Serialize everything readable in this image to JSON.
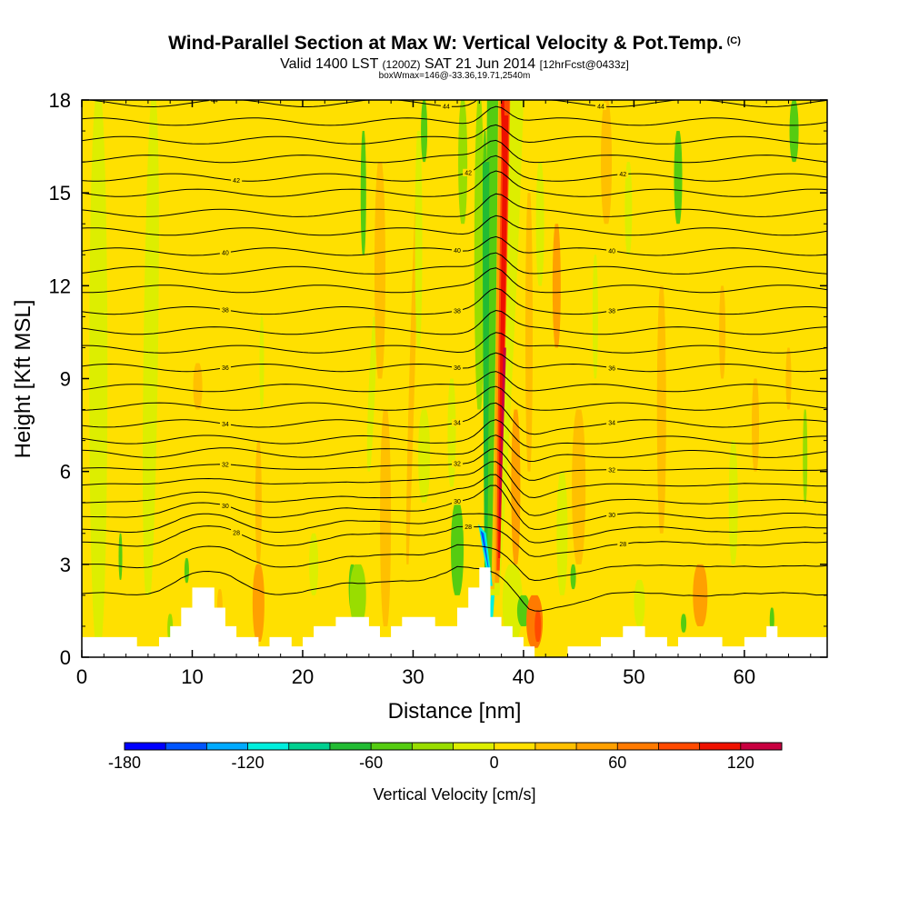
{
  "chart_data": {
    "type": "heatmap",
    "title": "Wind-Parallel Section at Max W: Vertical Velocity & Pot.Temp.",
    "title_mark": "(C)",
    "subtitle_valid": "Valid 1400 LST",
    "subtitle_utc": "(1200Z)",
    "subtitle_date": "SAT 21 Jun 2014",
    "subtitle_fcst": "[12hrFcst@0433z]",
    "subtitle2": "boxWmax=146@-33.36,19.71,2540m",
    "xlabel": "Distance [nm]",
    "ylabel": "Height [Kft MSL]",
    "xlim": [
      0,
      67.5
    ],
    "ylim": [
      0,
      18
    ],
    "xticks": [
      0,
      10,
      20,
      30,
      40,
      50,
      60
    ],
    "yticks": [
      0,
      3,
      6,
      9,
      12,
      15,
      18
    ],
    "colorbar": {
      "label": "Vertical Velocity [cm/s]",
      "range": [
        -180,
        140
      ],
      "step": 20,
      "tick_labels": [
        "-180",
        "-120",
        "-60",
        "0",
        "60",
        "120"
      ],
      "tick_values": [
        -180,
        -120,
        -60,
        0,
        60,
        120
      ],
      "colors": [
        "#0000ff",
        "#0055ff",
        "#00aaff",
        "#00eedd",
        "#00d090",
        "#22bb33",
        "#55cc11",
        "#99dd00",
        "#ddee00",
        "#ffe000",
        "#ffc000",
        "#ffa000",
        "#ff7a00",
        "#ff4a00",
        "#ee1100",
        "#c80040"
      ]
    },
    "updraft_max_cm_s": 146,
    "updraft_center_x_nm": 37.5,
    "terrain": [
      [
        0,
        0.65
      ],
      [
        5,
        0.65
      ],
      [
        5,
        0.35
      ],
      [
        7,
        0.35
      ],
      [
        7,
        0.65
      ],
      [
        8,
        0.65
      ],
      [
        8,
        1.0
      ],
      [
        9,
        1.0
      ],
      [
        9,
        1.6
      ],
      [
        10,
        1.6
      ],
      [
        10,
        2.25
      ],
      [
        12,
        2.25
      ],
      [
        12,
        1.6
      ],
      [
        13,
        1.6
      ],
      [
        13,
        1.0
      ],
      [
        14,
        1.0
      ],
      [
        14,
        0.65
      ],
      [
        16,
        0.65
      ],
      [
        16,
        0.35
      ],
      [
        17,
        0.35
      ],
      [
        17,
        0.65
      ],
      [
        19,
        0.65
      ],
      [
        19,
        0.35
      ],
      [
        20,
        0.35
      ],
      [
        20,
        0.65
      ],
      [
        21,
        0.65
      ],
      [
        21,
        1.0
      ],
      [
        23,
        1.0
      ],
      [
        23,
        1.3
      ],
      [
        26,
        1.3
      ],
      [
        26,
        1.0
      ],
      [
        27,
        1.0
      ],
      [
        27,
        0.65
      ],
      [
        28,
        0.65
      ],
      [
        28,
        1.0
      ],
      [
        29,
        1.0
      ],
      [
        29,
        1.3
      ],
      [
        32,
        1.3
      ],
      [
        32,
        1.0
      ],
      [
        34,
        1.0
      ],
      [
        34,
        1.6
      ],
      [
        35,
        1.6
      ],
      [
        35,
        2.25
      ],
      [
        36,
        2.25
      ],
      [
        36,
        2.9
      ],
      [
        37,
        2.9
      ],
      [
        37,
        1.3
      ],
      [
        38,
        1.3
      ],
      [
        38,
        1.0
      ],
      [
        39,
        1.0
      ],
      [
        39,
        0.65
      ],
      [
        40,
        0.65
      ],
      [
        40,
        0.35
      ],
      [
        41,
        0.35
      ],
      [
        41,
        0.0
      ],
      [
        44,
        0.0
      ],
      [
        44,
        0.35
      ],
      [
        47,
        0.35
      ],
      [
        47,
        0.65
      ],
      [
        49,
        0.65
      ],
      [
        49,
        1.0
      ],
      [
        51,
        1.0
      ],
      [
        51,
        0.65
      ],
      [
        53,
        0.65
      ],
      [
        53,
        0.35
      ],
      [
        54,
        0.35
      ],
      [
        54,
        0.65
      ],
      [
        58,
        0.65
      ],
      [
        58,
        0.35
      ],
      [
        60,
        0.35
      ],
      [
        60,
        0.65
      ],
      [
        62,
        0.65
      ],
      [
        62,
        1.0
      ],
      [
        63,
        1.0
      ],
      [
        63,
        0.65
      ],
      [
        67.5,
        0.65
      ]
    ],
    "isentropes": [
      {
        "base": 1.5,
        "label": ""
      },
      {
        "base": 2.5,
        "label": ""
      },
      {
        "base": 3.3,
        "label": "28"
      },
      {
        "base": 3.8,
        "label": ""
      },
      {
        "base": 4.3,
        "label": "30"
      },
      {
        "base": 4.8,
        "label": ""
      },
      {
        "base": 5.4,
        "label": ""
      },
      {
        "base": 5.95,
        "label": "32"
      },
      {
        "base": 6.5,
        "label": ""
      },
      {
        "base": 7.0,
        "label": ""
      },
      {
        "base": 7.55,
        "label": "34"
      },
      {
        "base": 8.1,
        "label": ""
      },
      {
        "base": 8.7,
        "label": ""
      },
      {
        "base": 9.35,
        "label": "36"
      },
      {
        "base": 9.95,
        "label": ""
      },
      {
        "base": 10.55,
        "label": ""
      },
      {
        "base": 11.2,
        "label": "38"
      },
      {
        "base": 11.9,
        "label": ""
      },
      {
        "base": 12.5,
        "label": ""
      },
      {
        "base": 13.1,
        "label": "40"
      },
      {
        "base": 13.75,
        "label": ""
      },
      {
        "base": 14.35,
        "label": ""
      },
      {
        "base": 15.0,
        "label": ""
      },
      {
        "base": 15.5,
        "label": "42"
      },
      {
        "base": 16.1,
        "label": ""
      },
      {
        "base": 16.7,
        "label": ""
      },
      {
        "base": 17.3,
        "label": ""
      },
      {
        "base": 17.9,
        "label": "44"
      }
    ]
  }
}
